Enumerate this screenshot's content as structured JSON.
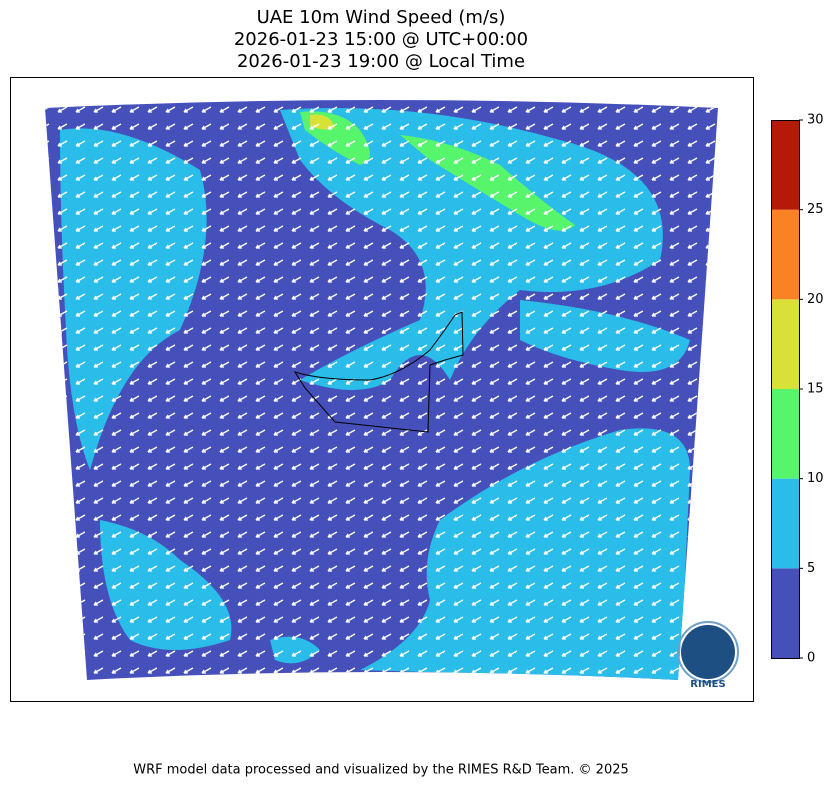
{
  "title": [
    "UAE 10m Wind Speed (m/s)",
    "2026-01-23 15:00 @ UTC+00:00",
    "2026-01-23 19:00 @ Local Time"
  ],
  "colorbar": {
    "ticks": [
      0,
      5,
      10,
      15,
      20,
      25,
      30
    ],
    "colors": [
      "#4650bb",
      "#2bbde9",
      "#57f56c",
      "#d8e236",
      "#fb8125",
      "#b51a09"
    ]
  },
  "logo": "RIMES",
  "footer": "WRF model data processed and visualized by the RIMES R&D Team. © 2025"
}
